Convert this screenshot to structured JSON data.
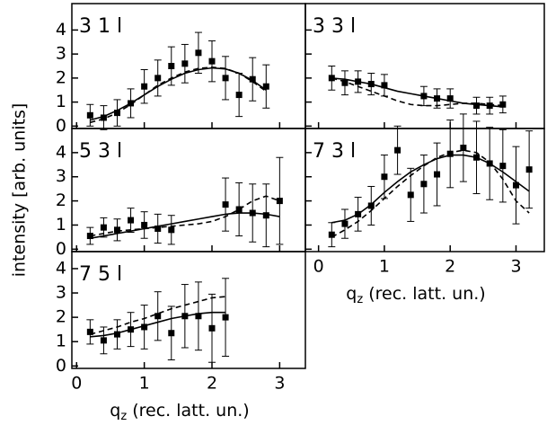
{
  "chart_data": [
    {
      "type": "errorbar",
      "title": "3 1 l",
      "xlim": [
        -0.07,
        3.38
      ],
      "ylim": [
        -0.1,
        5.1
      ],
      "xticks": [
        0,
        1,
        2,
        3
      ],
      "yticks": [
        0,
        1,
        2,
        3,
        4
      ],
      "show_xtick_labels": false,
      "show_ytick_labels": true,
      "x": [
        0.2,
        0.4,
        0.6,
        0.8,
        1.0,
        1.2,
        1.4,
        1.6,
        1.8,
        2.0,
        2.2,
        2.4,
        2.6,
        2.8
      ],
      "values": [
        0.45,
        0.35,
        0.55,
        0.95,
        1.65,
        2.0,
        2.5,
        2.6,
        3.05,
        2.7,
        2.0,
        1.3,
        1.95,
        1.65
      ],
      "errors": [
        0.45,
        0.5,
        0.55,
        0.6,
        0.7,
        0.75,
        0.8,
        0.8,
        0.85,
        0.85,
        0.9,
        0.9,
        0.9,
        0.9
      ],
      "curves": [
        {
          "dash": false,
          "x": [
            0.2,
            0.4,
            0.6,
            0.8,
            1.0,
            1.2,
            1.4,
            1.6,
            1.8,
            2.0,
            2.2,
            2.4,
            2.6,
            2.8
          ],
          "values": [
            0.25,
            0.4,
            0.65,
            0.95,
            1.3,
            1.65,
            1.95,
            2.2,
            2.35,
            2.42,
            2.38,
            2.2,
            1.9,
            1.5
          ]
        },
        {
          "dash": true,
          "x": [
            0.2,
            0.4,
            0.6,
            0.8,
            1.0,
            1.2,
            1.4,
            1.6,
            1.8,
            2.0,
            2.2,
            2.4,
            2.6,
            2.8
          ],
          "values": [
            0.15,
            0.3,
            0.55,
            0.9,
            1.3,
            1.7,
            2.0,
            2.25,
            2.4,
            2.45,
            2.4,
            2.2,
            1.85,
            1.45
          ]
        }
      ]
    },
    {
      "type": "errorbar",
      "title": "3 3 l",
      "xlim": [
        -0.2,
        3.43
      ],
      "ylim": [
        -0.1,
        5.1
      ],
      "xticks": [
        0,
        1,
        2,
        3
      ],
      "yticks": [
        0,
        1,
        2,
        3,
        4
      ],
      "show_xtick_labels": false,
      "show_ytick_labels": false,
      "x": [
        0.2,
        0.4,
        0.6,
        0.8,
        1.0,
        1.6,
        1.8,
        2.0,
        2.4,
        2.6,
        2.8
      ],
      "values": [
        2.0,
        1.8,
        1.85,
        1.75,
        1.7,
        1.25,
        1.15,
        1.15,
        0.85,
        0.85,
        0.9
      ],
      "errors": [
        0.5,
        0.5,
        0.45,
        0.45,
        0.45,
        0.4,
        0.4,
        0.4,
        0.35,
        0.35,
        0.35
      ],
      "curves": [
        {
          "dash": false,
          "x": [
            0.2,
            0.4,
            0.6,
            0.8,
            1.0,
            1.2,
            1.4,
            1.6,
            1.8,
            2.0,
            2.2,
            2.4,
            2.6,
            2.8
          ],
          "values": [
            2.0,
            1.95,
            1.85,
            1.75,
            1.6,
            1.45,
            1.35,
            1.25,
            1.15,
            1.05,
            0.95,
            0.9,
            0.85,
            0.8
          ]
        },
        {
          "dash": true,
          "x": [
            0.2,
            0.4,
            0.6,
            0.8,
            1.0,
            1.2,
            1.4,
            1.6,
            1.8,
            2.0,
            2.2,
            2.4,
            2.6,
            2.8
          ],
          "values": [
            2.0,
            1.85,
            1.65,
            1.45,
            1.25,
            1.05,
            0.9,
            0.85,
            0.85,
            0.9,
            0.95,
            0.95,
            0.9,
            0.85
          ]
        }
      ]
    },
    {
      "type": "errorbar",
      "title": "5 3 l",
      "ylabel": "intensity [arb. units]",
      "xlim": [
        -0.07,
        3.38
      ],
      "ylim": [
        -0.1,
        5.0
      ],
      "xticks": [
        0,
        1,
        2,
        3
      ],
      "yticks": [
        0,
        1,
        2,
        3,
        4
      ],
      "show_xtick_labels": false,
      "show_ytick_labels": true,
      "x": [
        0.2,
        0.4,
        0.6,
        0.8,
        1.0,
        1.2,
        1.4,
        2.2,
        2.4,
        2.6,
        2.8,
        3.0
      ],
      "values": [
        0.55,
        0.9,
        0.8,
        1.2,
        1.0,
        0.85,
        0.8,
        1.85,
        1.65,
        1.5,
        1.4,
        2.0
      ],
      "errors": [
        0.35,
        0.4,
        0.45,
        0.5,
        0.55,
        0.6,
        0.6,
        1.1,
        1.1,
        1.2,
        1.3,
        1.8
      ],
      "curves": [
        {
          "dash": false,
          "x": [
            0.2,
            0.4,
            0.6,
            0.8,
            1.0,
            1.2,
            1.4,
            1.6,
            1.8,
            2.0,
            2.2,
            2.4,
            2.6,
            2.8,
            3.0
          ],
          "values": [
            0.45,
            0.55,
            0.65,
            0.75,
            0.85,
            0.95,
            1.05,
            1.15,
            1.25,
            1.35,
            1.45,
            1.5,
            1.5,
            1.45,
            1.35
          ]
        },
        {
          "dash": true,
          "x": [
            0.2,
            0.4,
            0.6,
            0.8,
            1.0,
            1.2,
            1.4,
            1.6,
            1.8,
            2.0,
            2.2,
            2.4,
            2.6,
            2.8,
            3.0
          ],
          "values": [
            0.55,
            0.65,
            0.75,
            0.8,
            0.85,
            0.9,
            0.95,
            1.0,
            1.05,
            1.15,
            1.35,
            1.65,
            2.0,
            2.2,
            2.0
          ]
        }
      ]
    },
    {
      "type": "errorbar",
      "title": "7 3 l",
      "xlabel": {
        "main": "q",
        "sub": "z",
        "rest": " (rec. latt. un.)"
      },
      "xlim": [
        -0.2,
        3.43
      ],
      "ylim": [
        -0.1,
        5.0
      ],
      "xticks": [
        0,
        1,
        2,
        3
      ],
      "yticks": [
        0,
        1,
        2,
        3,
        4
      ],
      "show_xtick_labels": true,
      "show_ytick_labels": false,
      "x": [
        0.2,
        0.4,
        0.6,
        0.8,
        1.0,
        1.2,
        1.4,
        1.6,
        1.8,
        2.0,
        2.2,
        2.4,
        2.6,
        2.8,
        3.0,
        3.2
      ],
      "values": [
        0.6,
        1.05,
        1.45,
        1.8,
        3.0,
        4.1,
        2.25,
        2.7,
        3.1,
        3.95,
        4.2,
        3.8,
        3.55,
        3.45,
        2.65,
        3.3
      ],
      "errors": [
        0.5,
        0.6,
        0.7,
        0.8,
        0.9,
        1.0,
        1.1,
        1.2,
        1.3,
        1.4,
        1.4,
        1.5,
        1.5,
        1.5,
        1.6,
        1.6
      ],
      "curves": [
        {
          "dash": false,
          "x": [
            0.2,
            0.4,
            0.6,
            0.8,
            1.0,
            1.2,
            1.4,
            1.6,
            1.8,
            2.0,
            2.2,
            2.4,
            2.6,
            2.8,
            3.0,
            3.2
          ],
          "values": [
            1.1,
            1.2,
            1.45,
            1.85,
            2.35,
            2.8,
            3.2,
            3.5,
            3.75,
            3.9,
            3.9,
            3.8,
            3.55,
            3.2,
            2.8,
            2.4
          ]
        },
        {
          "dash": true,
          "x": [
            0.2,
            0.4,
            0.6,
            0.8,
            1.0,
            1.2,
            1.4,
            1.6,
            1.8,
            2.0,
            2.2,
            2.4,
            2.6,
            2.8,
            3.0,
            3.2
          ],
          "values": [
            0.5,
            0.8,
            1.15,
            1.6,
            2.1,
            2.6,
            3.05,
            3.45,
            3.8,
            4.0,
            4.1,
            4.0,
            3.6,
            2.9,
            2.0,
            1.5
          ]
        }
      ]
    },
    {
      "type": "errorbar",
      "title": "7 5 l",
      "xlabel": {
        "main": "q",
        "sub": "z",
        "rest": " (rec. latt. un.)"
      },
      "xlim": [
        -0.07,
        3.38
      ],
      "ylim": [
        -0.1,
        4.7
      ],
      "xticks": [
        0,
        1,
        2,
        3
      ],
      "yticks": [
        0,
        1,
        2,
        3,
        4
      ],
      "show_xtick_labels": true,
      "show_ytick_labels": true,
      "x": [
        0.2,
        0.4,
        0.6,
        0.8,
        1.0,
        1.2,
        1.4,
        1.6,
        1.8,
        2.0,
        2.2
      ],
      "values": [
        1.4,
        1.05,
        1.3,
        1.5,
        1.6,
        2.05,
        1.35,
        2.05,
        2.05,
        1.55,
        2.0
      ],
      "errors": [
        0.5,
        0.55,
        0.6,
        0.7,
        0.9,
        1.0,
        1.1,
        1.3,
        1.4,
        1.4,
        1.6
      ],
      "curves": [
        {
          "dash": false,
          "x": [
            0.2,
            0.4,
            0.6,
            0.8,
            1.0,
            1.2,
            1.4,
            1.6,
            1.8,
            2.0,
            2.2
          ],
          "values": [
            1.2,
            1.25,
            1.35,
            1.5,
            1.65,
            1.8,
            1.95,
            2.05,
            2.15,
            2.2,
            2.2
          ]
        },
        {
          "dash": true,
          "x": [
            0.2,
            0.4,
            0.6,
            0.8,
            1.0,
            1.2,
            1.4,
            1.6,
            1.8,
            2.0,
            2.2
          ],
          "values": [
            1.3,
            1.45,
            1.6,
            1.8,
            1.95,
            2.15,
            2.35,
            2.5,
            2.65,
            2.8,
            2.85
          ]
        }
      ]
    }
  ]
}
